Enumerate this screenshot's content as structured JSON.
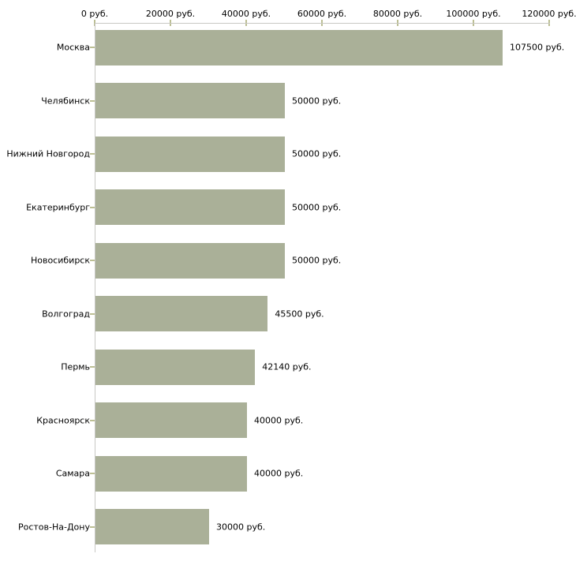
{
  "chart_data": {
    "type": "bar",
    "orientation": "horizontal",
    "title": "",
    "xlabel": "",
    "ylabel": "",
    "unit_suffix": " руб.",
    "categories": [
      "Москва",
      "Челябинск",
      "Нижний Новгород",
      "Екатеринбург",
      "Новосибирск",
      "Волгоград",
      "Пермь",
      "Красноярск",
      "Самара",
      "Ростов-На-Дону"
    ],
    "values": [
      107500,
      50000,
      50000,
      50000,
      50000,
      45500,
      42140,
      40000,
      40000,
      30000
    ],
    "value_labels": [
      "107500 руб.",
      "50000 руб.",
      "50000 руб.",
      "50000 руб.",
      "50000 руб.",
      "45500 руб.",
      "42140 руб.",
      "40000 руб.",
      "40000 руб.",
      "30000 руб."
    ],
    "x_axis": {
      "position": "top",
      "min": 0,
      "max": 120000,
      "ticks": [
        0,
        20000,
        40000,
        60000,
        80000,
        100000,
        120000
      ],
      "tick_labels": [
        "0 руб.",
        "20000 руб.",
        "40000 руб.",
        "60000 руб.",
        "80000 руб.",
        "100000 руб.",
        "120000 руб."
      ]
    },
    "grid": false,
    "legend": false,
    "colors": {
      "bar": "#aab098",
      "axis_line": "#c8c8c4",
      "tick_mark": "#bcbf94",
      "text": "#000000",
      "background": "#ffffff"
    }
  }
}
